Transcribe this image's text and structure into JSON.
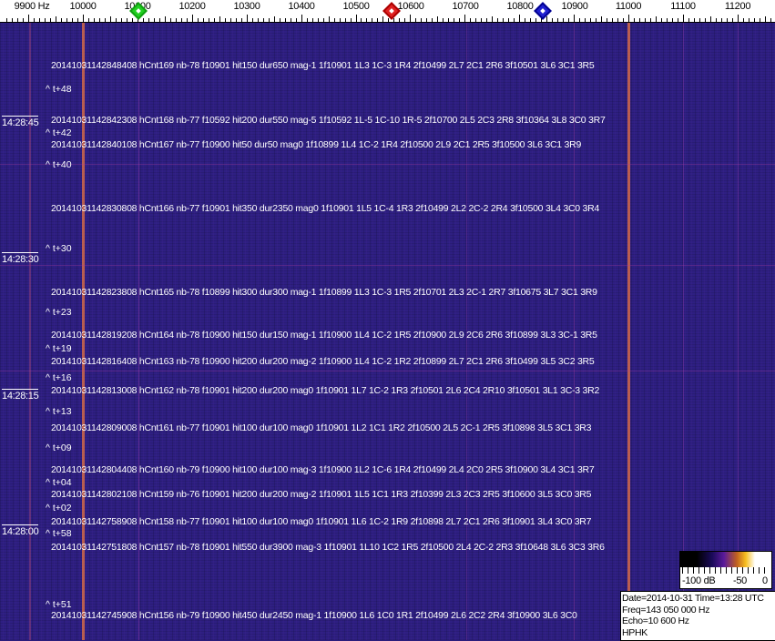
{
  "axis": {
    "unit_label": "9900 Hz",
    "labels": [
      "10000",
      "10100",
      "10200",
      "10300",
      "10400",
      "10500",
      "10600",
      "10700",
      "10800",
      "10900",
      "11000",
      "11100",
      "11200"
    ],
    "markers": [
      {
        "name": "green-marker",
        "color": "#10c010",
        "freq_hz": 10100
      },
      {
        "name": "red-marker",
        "color": "#d01010",
        "freq_hz": 10560
      },
      {
        "name": "blue-marker",
        "color": "#1010c0",
        "freq_hz": 10840
      }
    ]
  },
  "colors": {
    "background": "#2e1f82",
    "strong_line": "#d8683a",
    "faint_line": "#8a3aa8"
  },
  "time_labels": [
    "14:28:45",
    "14:28:30",
    "14:28:15",
    "14:28:00"
  ],
  "t_marks": [
    "^ t+48",
    "^ t+42",
    "^ t+40",
    "^ t+30",
    "^ t+23",
    "^ t+19",
    "^ t+16",
    "^ t+13",
    "^ t+09",
    "^ t+04",
    "^ t+02",
    "^ t+58",
    "^ t+51"
  ],
  "rows": [
    "20141031142848408 hCnt169 nb-78 f10901 hit150 dur650 mag-1 1f10901 1L3 1C-3 1R4 2f10499 2L7 2C1 2R6 3f10501 3L6 3C1 3R5",
    "20141031142842308 hCnt168 nb-77 f10592 hit200 dur550 mag-5 1f10592 1L-5 1C-10 1R-5 2f10700 2L5 2C3 2R8 3f10364 3L8 3C0 3R7",
    "20141031142840108 hCnt167 nb-77 f10900 hit50 dur50 mag0 1f10899 1L4 1C-2 1R4 2f10500 2L9 2C1 2R5 3f10500 3L6 3C1 3R9",
    "20141031142830808 hCnt166 nb-77 f10901 hit350 dur2350 mag0 1f10901 1L5 1C-4 1R3 2f10499 2L2 2C-2 2R4 3f10500 3L4 3C0 3R4",
    "20141031142823808 hCnt165 nb-78 f10899 hit300 dur300 mag-1 1f10899 1L3 1C-3 1R5 2f10701 2L3 2C-1 2R7 3f10675 3L7 3C1 3R9",
    "20141031142819208 hCnt164 nb-78 f10900 hit150 dur150 mag-1 1f10900 1L4 1C-2 1R5 2f10900 2L9 2C6 2R6 3f10899 3L3 3C-1 3R5",
    "20141031142816408 hCnt163 nb-78 f10900 hit200 dur200 mag-2 1f10900 1L4 1C-2 1R2 2f10899 2L7 2C1 2R6 3f10499 3L5 3C2 3R5",
    "20141031142813008 hCnt162 nb-78 f10901 hit200 dur200 mag0 1f10901 1L7 1C-2 1R3 2f10501 2L6 2C4 2R10 3f10501 3L1 3C-3 3R2",
    "20141031142809008 hCnt161 nb-77 f10901 hit100 dur100 mag0 1f10901 1L2 1C1 1R2 2f10500 2L5 2C-1 2R5 3f10898 3L5 3C1 3R3",
    "20141031142804408 hCnt160 nb-79 f10900 hit100 dur100 mag-3 1f10900 1L2 1C-6 1R4 2f10499 2L4 2C0 2R5 3f10900 3L4 3C1 3R7",
    "20141031142802108 hCnt159 nb-76 f10901 hit200 dur200 mag-2 1f10901 1L5 1C1 1R3 2f10399 2L3 2C3 2R5 3f10600 3L5 3C0 3R5",
    "20141031142758908 hCnt158 nb-77 f10901 hit100 dur100 mag0 1f10901 1L6 1C-2 1R9 2f10898 2L7 2C1 2R6 3f10901 3L4 3C0 3R7",
    "20141031142751808 hCnt157 nb-78 f10901 hit550 dur3900 mag-3 1f10901 1L10 1C2 1R5 2f10500 2L4 2C-2 2R3 3f10648 3L6 3C3 3R6",
    "20141031142745908 hCnt156 nb-79 f10900 hit450 dur2450 mag-1 1f10900 1L6 1C0 1R1 2f10499 2L6 2C2 2R4 3f10900 3L6 3C0"
  ],
  "colorbar": {
    "labels": [
      "-100 dB",
      "-50",
      "0"
    ],
    "range_db": [
      -100,
      0
    ]
  },
  "info": {
    "line1": "Date=2014-10-31 Time=13:28 UTC",
    "line2": "Freq=143 050 000 Hz",
    "line3": "Echo=10 600 Hz",
    "line4": "HPHK"
  }
}
